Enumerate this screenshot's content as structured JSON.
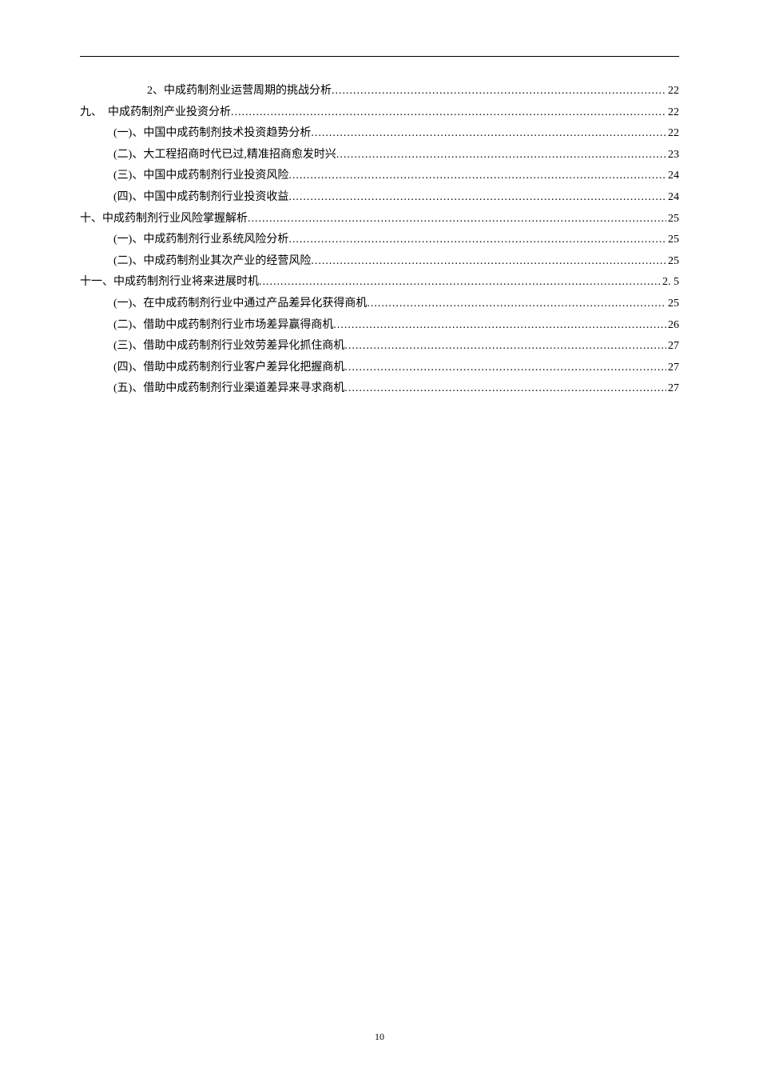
{
  "toc_entries": [
    {
      "indent": 3,
      "label": "2、中成药制剂业运营周期的挑战分析",
      "page": "22"
    },
    {
      "indent": 1,
      "label": "九、　中成药制剂产业投资分析",
      "page": "22"
    },
    {
      "indent": 2,
      "label": "(一)、中国中成药制剂技术投资趋势分析",
      "page": "22"
    },
    {
      "indent": 2,
      "label": "(二)、大工程招商时代已过,精准招商愈发时兴",
      "page": "23"
    },
    {
      "indent": 2,
      "label": "(三)、中国中成药制剂行业投资风险",
      "page": "24"
    },
    {
      "indent": 2,
      "label": "(四)、中国中成药制剂行业投资收益",
      "page": "24"
    },
    {
      "indent": 1,
      "label": "十、中成药制剂行业风险掌握解析",
      "page": "25"
    },
    {
      "indent": 2,
      "label": "(一)、中成药制剂行业系统风险分析",
      "page": "25"
    },
    {
      "indent": 2,
      "label": "(二)、中成药制剂业其次产业的经营风险",
      "page": "25"
    },
    {
      "indent": 1,
      "label": "十一、中成药制剂行业将来进展时机 ",
      "page": "2. 5"
    },
    {
      "indent": 2,
      "label": "(一)、在中成药制剂行业中通过产品差异化获得商机",
      "page": "25"
    },
    {
      "indent": 2,
      "label": "(二)、借助中成药制剂行业市场差异赢得商机",
      "page": "26"
    },
    {
      "indent": 2,
      "label": "(三)、借助中成药制剂行业效劳差异化抓住商机",
      "page": "27"
    },
    {
      "indent": 2,
      "label": "(四)、借助中成药制剂行业客户差异化把握商机",
      "page": "27"
    },
    {
      "indent": 2,
      "label": "(五)、借助中成药制剂行业渠道差异来寻求商机",
      "page": "27"
    }
  ],
  "page_number": "10"
}
